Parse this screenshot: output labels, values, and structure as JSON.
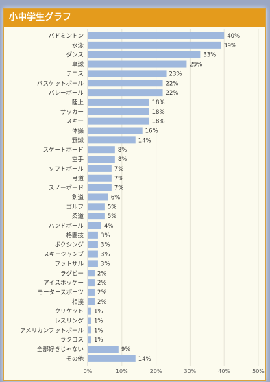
{
  "header": {
    "title": "小中学生グラフ"
  },
  "colors": {
    "bar": "#9fb8dd",
    "header": "#e49b1c",
    "background": "#fcfbee"
  },
  "chart_data": {
    "type": "bar",
    "orientation": "horizontal",
    "title": "小中学生グラフ",
    "categories": [
      "バドミントン",
      "水泳",
      "ダンス",
      "卓球",
      "テニス",
      "バスケットボール",
      "バレーボール",
      "陸上",
      "サッカー",
      "スキー",
      "体操",
      "野球",
      "スケートボード",
      "空手",
      "ソフトボール",
      "弓道",
      "スノーボード",
      "剣道",
      "ゴルフ",
      "柔道",
      "ハンドボール",
      "格闘技",
      "ボクシング",
      "スキージャンプ",
      "フットサル",
      "ラグビー",
      "アイスホッケー",
      "モータースポーツ",
      "相撲",
      "クリケット",
      "レスリング",
      "アメリカンフットボール",
      "ラクロス",
      "全部好きじゃない",
      "その他"
    ],
    "values": [
      40,
      39,
      33,
      29,
      23,
      22,
      22,
      18,
      18,
      18,
      16,
      14,
      8,
      8,
      7,
      7,
      7,
      6,
      5,
      5,
      4,
      3,
      3,
      3,
      3,
      2,
      2,
      2,
      2,
      1,
      1,
      1,
      1,
      9,
      14
    ],
    "value_labels": [
      "40%",
      "39%",
      "33%",
      "29%",
      "23%",
      "22%",
      "22%",
      "18%",
      "18%",
      "18%",
      "16%",
      "14%",
      "8%",
      "8%",
      "7%",
      "7%",
      "7%",
      "6%",
      "5%",
      "5%",
      "4%",
      "3%",
      "3%",
      "3%",
      "3%",
      "2%",
      "2%",
      "2%",
      "2%",
      "1%",
      "1%",
      "1%",
      "1%",
      "9%",
      "14%"
    ],
    "xlim": [
      0,
      50
    ],
    "xticks": [
      "0%",
      "10%",
      "20%",
      "30%",
      "40%",
      "50%"
    ],
    "grid": true,
    "legend": "none"
  }
}
